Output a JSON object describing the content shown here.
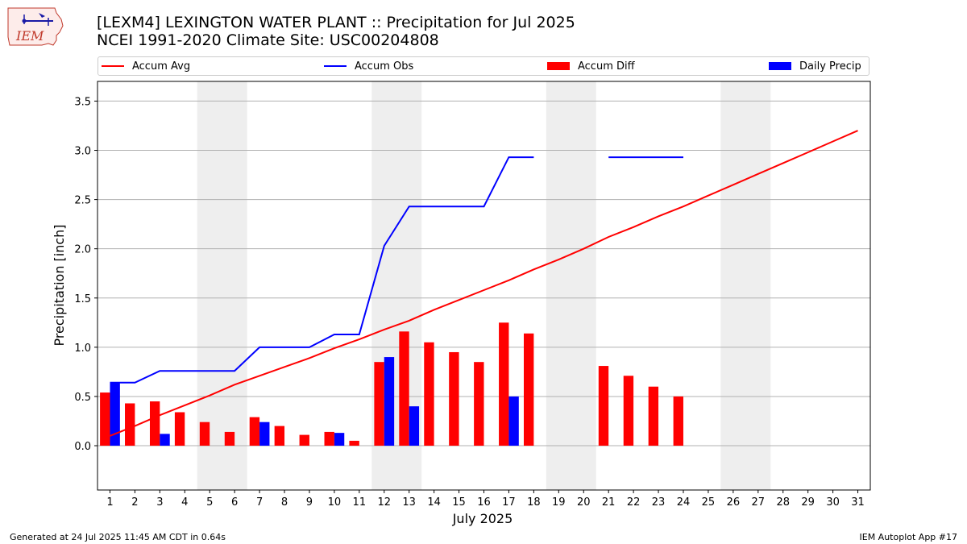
{
  "header": {
    "logo_text": "IEM",
    "title_line1": "[LEXM4] LEXINGTON WATER PLANT :: Precipitation for Jul 2025",
    "title_line2": "NCEI 1991-2020 Climate Site: USC00204808"
  },
  "legend": {
    "items": [
      {
        "label": "Accum Avg",
        "color": "#ff0000",
        "kind": "line"
      },
      {
        "label": "Accum Obs",
        "color": "#0000ff",
        "kind": "line"
      },
      {
        "label": "Accum Diff",
        "color": "#ff0000",
        "kind": "box"
      },
      {
        "label": "Daily Precip",
        "color": "#0000ff",
        "kind": "box"
      }
    ]
  },
  "footer": {
    "left": "Generated at 24 Jul 2025 11:45 AM CDT in 0.64s",
    "right": "IEM Autoplot App #17"
  },
  "chart_data": {
    "type": "bar",
    "xlabel": "July 2025",
    "ylabel": "Precipitation [inch]",
    "xlim": [
      0.5,
      31.5
    ],
    "ylim": [
      -0.45,
      3.7
    ],
    "yticks": [
      0.0,
      0.5,
      1.0,
      1.5,
      2.0,
      2.5,
      3.0,
      3.5
    ],
    "ytick_labels": [
      "0.0",
      "0.5",
      "1.0",
      "1.5",
      "2.0",
      "2.5",
      "3.0",
      "3.5"
    ],
    "xticks": [
      1,
      2,
      3,
      4,
      5,
      6,
      7,
      8,
      9,
      10,
      11,
      12,
      13,
      14,
      15,
      16,
      17,
      18,
      19,
      20,
      21,
      22,
      23,
      24,
      25,
      26,
      27,
      28,
      29,
      30,
      31
    ],
    "grid": "horizontal",
    "weekend_bands": [
      [
        4.5,
        6.5
      ],
      [
        11.5,
        13.5
      ],
      [
        18.5,
        20.5
      ],
      [
        25.5,
        27.5
      ]
    ],
    "accum_avg": {
      "x": [
        1,
        2,
        3,
        4,
        5,
        6,
        7,
        8,
        9,
        10,
        11,
        12,
        13,
        14,
        15,
        16,
        17,
        18,
        19,
        20,
        21,
        22,
        23,
        24,
        25,
        26,
        27,
        28,
        29,
        30,
        31
      ],
      "y": [
        0.1,
        0.2,
        0.31,
        0.41,
        0.51,
        0.62,
        0.71,
        0.8,
        0.89,
        0.99,
        1.08,
        1.18,
        1.27,
        1.38,
        1.48,
        1.58,
        1.68,
        1.79,
        1.89,
        2.0,
        2.12,
        2.22,
        2.33,
        2.43,
        2.54,
        2.65,
        2.76,
        2.87,
        2.98,
        3.09,
        3.2
      ],
      "color": "#ff0000"
    },
    "accum_obs": {
      "segments": [
        {
          "x": [
            1,
            2,
            3,
            4,
            5,
            6,
            7,
            8,
            9,
            10,
            11,
            12,
            13,
            14,
            15,
            16,
            17,
            18
          ],
          "y": [
            0.64,
            0.64,
            0.76,
            0.76,
            0.76,
            0.76,
            1.0,
            1.0,
            1.0,
            1.13,
            1.13,
            2.03,
            2.43,
            2.43,
            2.43,
            2.43,
            2.93,
            2.93
          ]
        },
        {
          "x": [
            21,
            22,
            23,
            24
          ],
          "y": [
            2.93,
            2.93,
            2.93,
            2.93
          ]
        }
      ],
      "color": "#0000ff"
    },
    "accum_diff": {
      "x": [
        1,
        2,
        3,
        4,
        5,
        6,
        7,
        8,
        9,
        10,
        11,
        12,
        13,
        14,
        15,
        16,
        17,
        18,
        21,
        22,
        23,
        24
      ],
      "values": [
        0.54,
        0.43,
        0.45,
        0.34,
        0.24,
        0.14,
        0.29,
        0.2,
        0.11,
        0.14,
        0.05,
        0.85,
        1.16,
        1.05,
        0.95,
        0.85,
        1.25,
        1.14,
        0.81,
        0.71,
        0.6,
        0.5
      ],
      "color": "#ff0000"
    },
    "daily_precip": {
      "x": [
        1,
        3,
        7,
        10,
        12,
        13,
        17
      ],
      "values": [
        0.64,
        0.12,
        0.24,
        0.13,
        0.9,
        0.4,
        0.5
      ],
      "color": "#0000ff"
    }
  }
}
